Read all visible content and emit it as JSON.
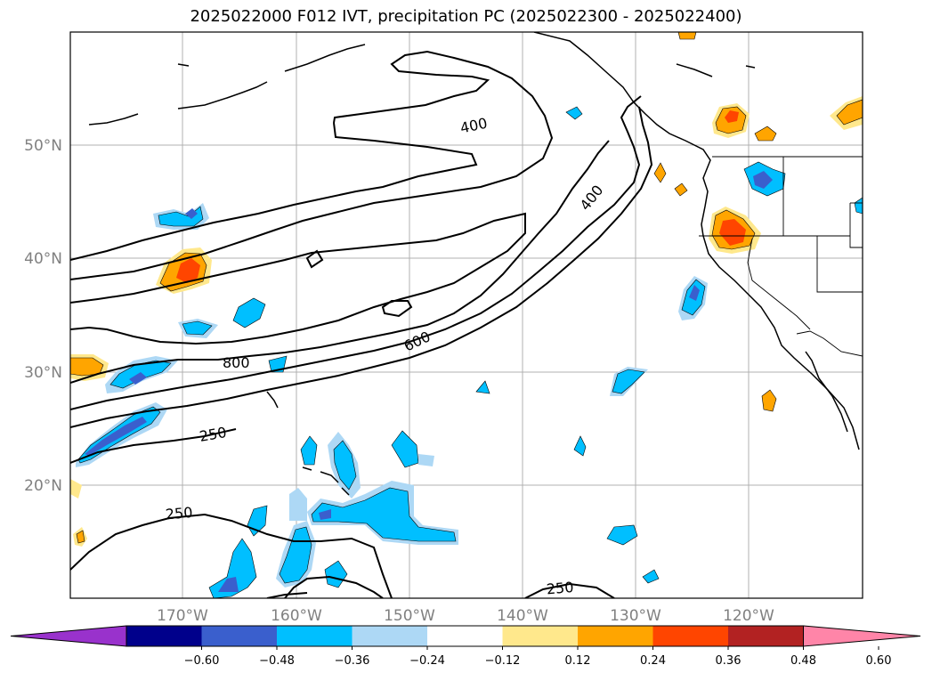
{
  "title": "2025022000 F012 IVT, precipitation PC (2025022300 - 2025022400)",
  "map": {
    "lat_labels": [
      "50°N",
      "40°N",
      "30°N",
      "20°N"
    ],
    "lon_labels": [
      "170°W",
      "160°W",
      "150°W",
      "140°W",
      "130°W",
      "120°W"
    ],
    "contour_labels": [
      {
        "text": "400"
      },
      {
        "text": "400"
      },
      {
        "text": "600"
      },
      {
        "text": "800"
      },
      {
        "text": "250"
      },
      {
        "text": "250"
      },
      {
        "text": "250"
      }
    ]
  },
  "colorbar": {
    "ticks": [
      "−0.60",
      "−0.48",
      "−0.36",
      "−0.24",
      "−0.12",
      "0.12",
      "0.24",
      "0.36",
      "0.48",
      "0.60"
    ],
    "colors": [
      "#9932cc",
      "#00008b",
      "#3a5fcd",
      "#00bfff",
      "#add8f5",
      "#ffffff",
      "#ffe88c",
      "#ffa500",
      "#ff4500",
      "#b22222",
      "#ff85a8"
    ]
  }
}
